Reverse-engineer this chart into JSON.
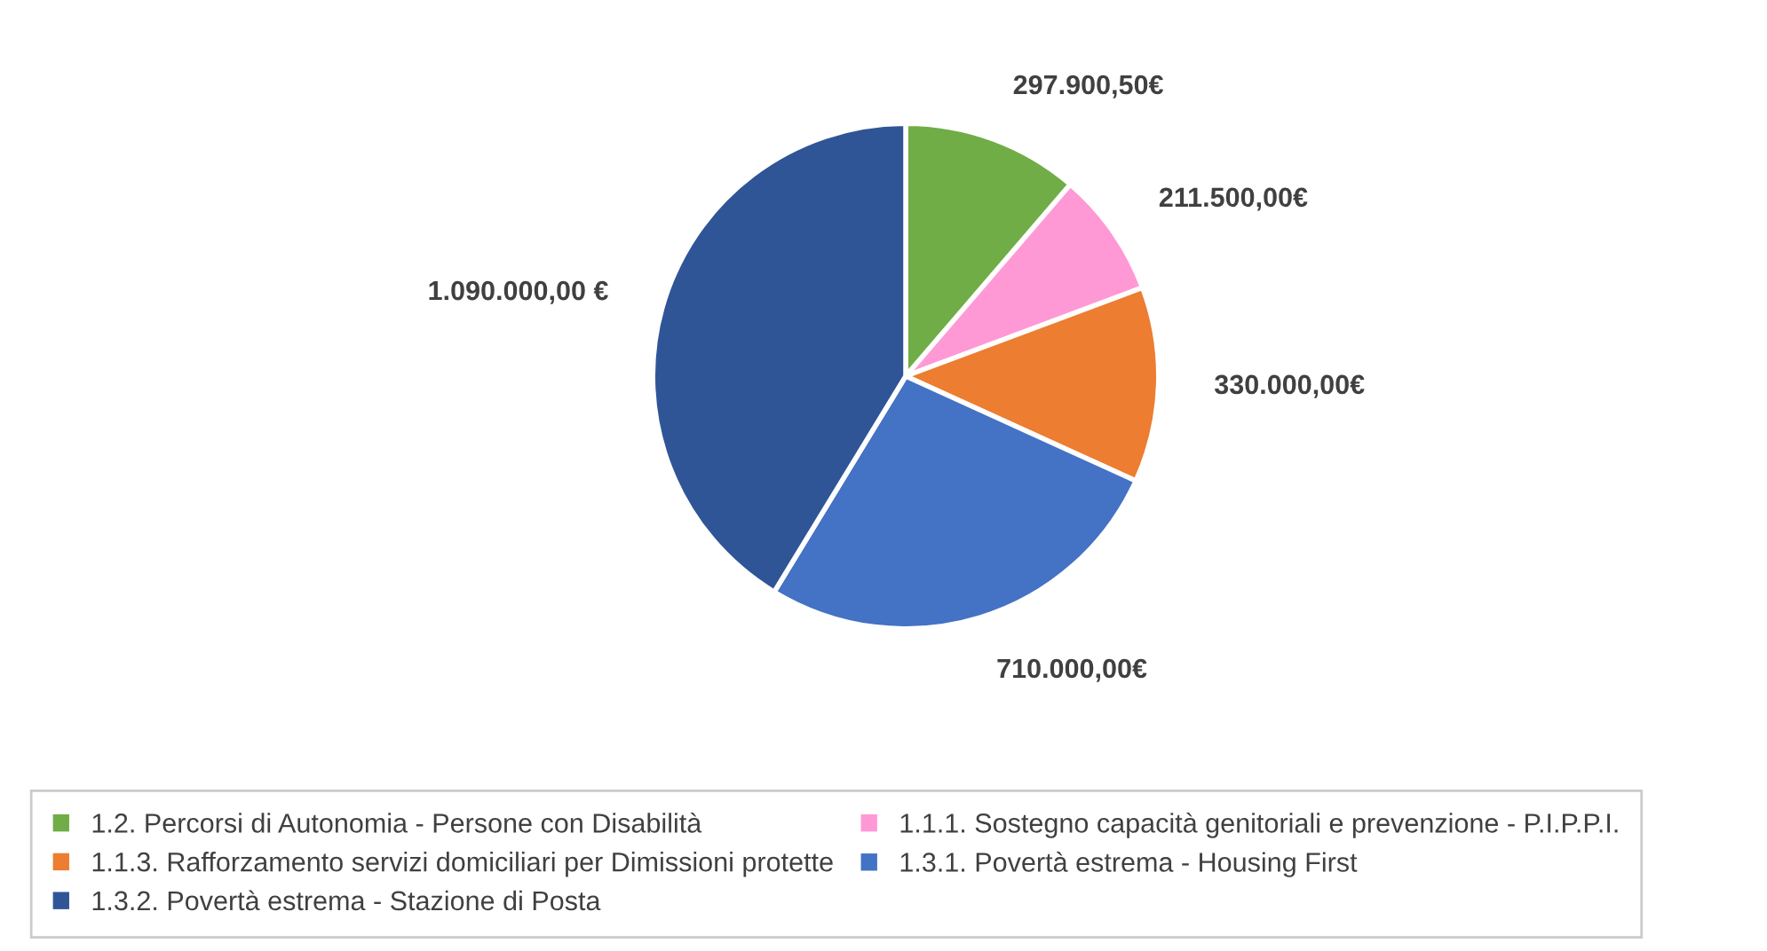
{
  "chart_data": {
    "type": "pie",
    "categories": [
      "1.2. Percorsi di Autonomia - Persone con Disabilità",
      "1.1.1. Sostegno capacità genitoriali e prevenzione - P.I.P.P.I.",
      "1.1.3. Rafforzamento servizi domiciliari per Dimissioni protette",
      "1.3.1. Povertà estrema - Housing First",
      "1.3.2. Povertà estrema - Stazione di Posta"
    ],
    "values": [
      297900.5,
      211500,
      330000,
      710000,
      1090000
    ],
    "colors": [
      "#70ad47",
      "#ff99d5",
      "#ed7d31",
      "#4472c4",
      "#2f5597"
    ],
    "value_labels": [
      "297.900,50€",
      "211.500,00€",
      "330.000,00€",
      "710.000,00€",
      "1.090.000,00 €"
    ],
    "legend": "bottom"
  }
}
